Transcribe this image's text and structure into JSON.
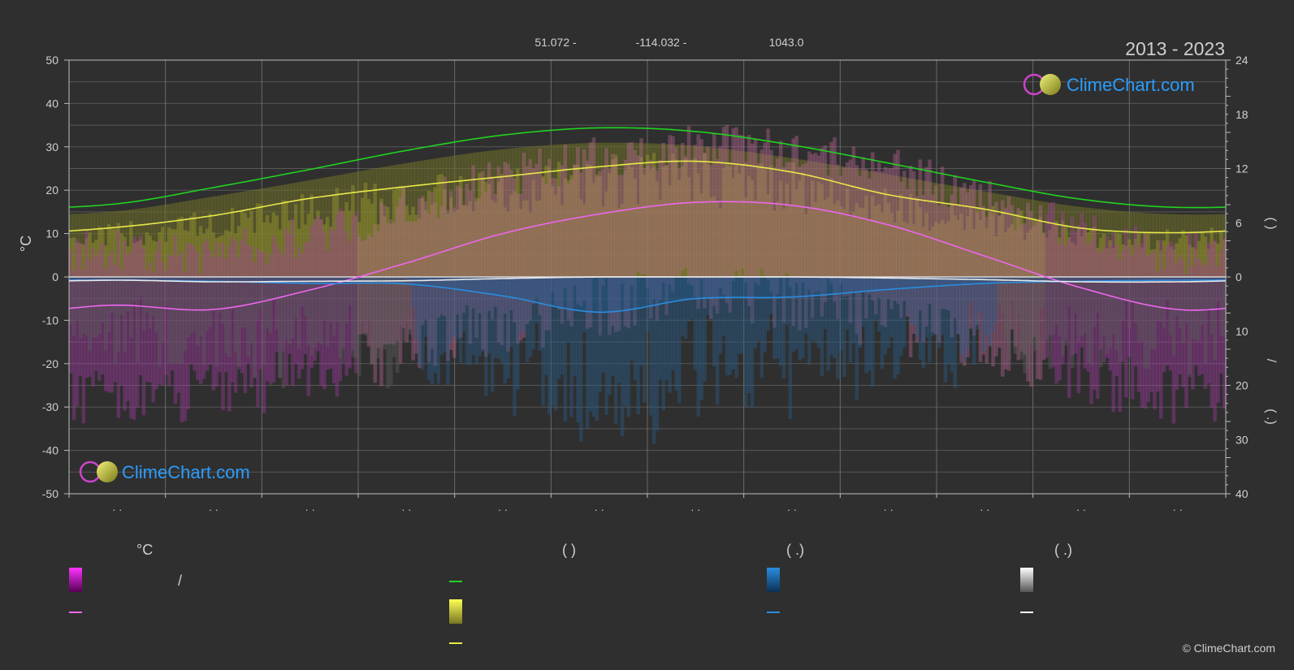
{
  "chart_data": {
    "type": "area",
    "period": "2013 - 2023",
    "location": {
      "latitude": "51.072 -",
      "longitude": "-114.032 -",
      "elevation": "1043.0"
    },
    "ylim_left": [
      -50,
      50
    ],
    "ylim_right_top": [
      0,
      24
    ],
    "ylim_right_bottom": [
      0,
      40
    ],
    "ticks_left": [
      "50",
      "40",
      "30",
      "20",
      "10",
      "0",
      "-10",
      "-20",
      "-30",
      "-40",
      "-50"
    ],
    "ticks_right_top": [
      "24",
      "18",
      "12",
      "6",
      "0"
    ],
    "ticks_right_bottom": [
      "10",
      "20",
      "30",
      "40"
    ],
    "ylabel_left": "°C",
    "ylabel_right_top": "(     )",
    "ylabel_right_bottom": "(   .)",
    "ylabel_right_mid": "/",
    "month_tick_labels": [
      "· ·",
      "· ·",
      "· ·",
      "· ·",
      "· ·",
      "· ·",
      "· ·",
      "· ·",
      "· ·",
      "· ·",
      "· ·",
      "· ·"
    ],
    "x_months": [
      0.5,
      1.5,
      2.5,
      3.5,
      4.5,
      5.5,
      6.5,
      7.5,
      8.5,
      9.5,
      10.5,
      11.5
    ],
    "series": [
      {
        "key": "daylight",
        "values": [
          8.1,
          9.9,
          11.9,
          14.0,
          15.7,
          16.5,
          16.1,
          14.6,
          12.6,
          10.5,
          8.6,
          7.7
        ],
        "axis": "right_top",
        "color": "#21d321"
      },
      {
        "key": "sunshine",
        "values": [
          5.5,
          6.8,
          8.7,
          10.0,
          11.1,
          12.2,
          12.8,
          11.6,
          9.1,
          7.5,
          5.4,
          4.9
        ],
        "axis": "right_top",
        "color": "#e8e84a"
      },
      {
        "key": "avg_max_temp",
        "values": [
          -6.5,
          -7.5,
          -3.0,
          3.2,
          10.0,
          14.5,
          17.2,
          16.5,
          12.0,
          4.8,
          -2.5,
          -7.5
        ],
        "axis": "left",
        "color": "#ee66ee"
      },
      {
        "key": "avg_min_temp",
        "values": [
          -15.5,
          -14.0,
          -11.0,
          -5.0,
          0.5,
          5.0,
          7.5,
          6.5,
          1.5,
          -4.0,
          -10.5,
          -15.0
        ],
        "axis": "left",
        "color": "#cc44cc"
      },
      {
        "key": "rainfall",
        "values": [
          0.6,
          0.8,
          1.2,
          1.3,
          3.5,
          6.5,
          4.0,
          3.7,
          2.3,
          1.2,
          0.8,
          0.6
        ],
        "axis": "right_bottom",
        "color": "#2a8de0"
      },
      {
        "key": "snowfall",
        "values": [
          0.6,
          0.9,
          0.8,
          0.7,
          0.3,
          0.0,
          0.0,
          0.0,
          0.2,
          0.5,
          0.9,
          0.9
        ],
        "axis": "right_bottom",
        "color": "#e8e8e8"
      }
    ],
    "legend": {
      "col1_title": "°C",
      "col1_sep": "/",
      "col2_title": "(          )",
      "col3_title": "(   .)",
      "col4_title": "(   .)"
    },
    "watermark": "ClimeChart.com",
    "copyright": "© ClimeChart.com",
    "colors": {
      "background": "#2f2f2f",
      "grid": "#5a5a5a",
      "axis": "#cccccc",
      "brand": "#1e90ff"
    }
  }
}
